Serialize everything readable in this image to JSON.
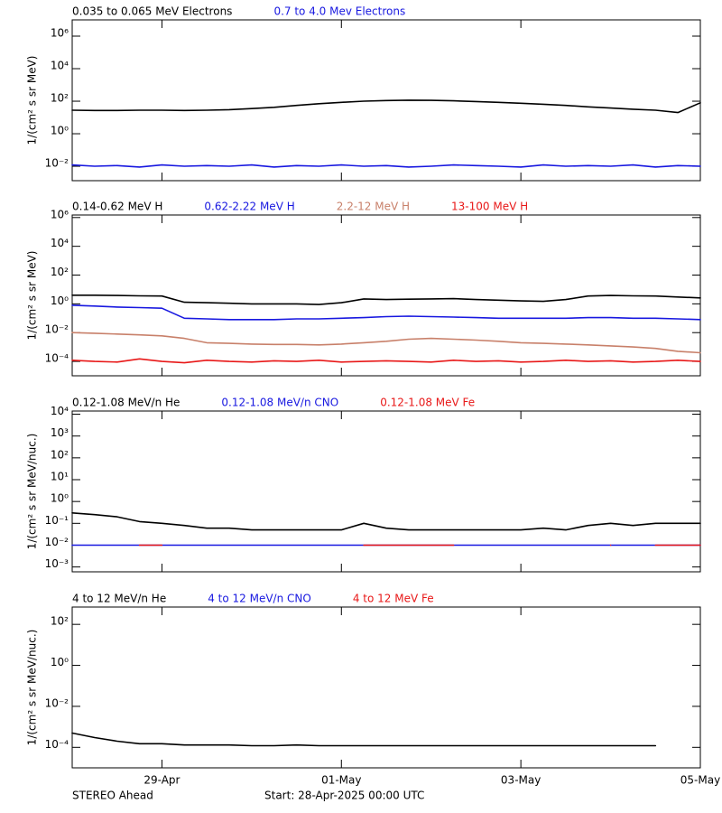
{
  "chart_data": [
    {
      "type": "line",
      "log_scale": true,
      "ylabel": "1/(cm² s sr MeV)",
      "ylim": [
        0.0013,
        10000000
      ],
      "yticks": [
        {
          "value": 0.01,
          "label": "10⁻²"
        },
        {
          "value": 1,
          "label": "10⁰"
        },
        {
          "value": 100,
          "label": "10²"
        },
        {
          "value": 10000,
          "label": "10⁴"
        },
        {
          "value": 1000000,
          "label": "10⁶"
        }
      ],
      "x": [
        0,
        0.25,
        0.5,
        0.75,
        1,
        1.25,
        1.5,
        1.75,
        2,
        2.25,
        2.5,
        2.75,
        3,
        3.25,
        3.5,
        3.75,
        4,
        4.25,
        4.5,
        4.75,
        5,
        5.25,
        5.5,
        5.75,
        6,
        6.25,
        6.5,
        6.75,
        7
      ],
      "series": [
        {
          "name": "0.035 to 0.065 MeV Electrons",
          "color": "#000000",
          "values": [
            28,
            27,
            27,
            28,
            28,
            27,
            28,
            30,
            35,
            42,
            55,
            70,
            85,
            100,
            110,
            115,
            112,
            105,
            95,
            85,
            75,
            65,
            55,
            45,
            38,
            32,
            28,
            20,
            80
          ]
        },
        {
          "name": "0.7 to 4.0 Mev Electrons",
          "color": "#1818e0",
          "values": [
            0.012,
            0.01,
            0.011,
            0.009,
            0.012,
            0.01,
            0.011,
            0.01,
            0.012,
            0.009,
            0.011,
            0.01,
            0.012,
            0.01,
            0.011,
            0.009,
            0.01,
            0.012,
            0.011,
            0.01,
            0.009,
            0.012,
            0.01,
            0.011,
            0.01,
            0.012,
            0.009,
            0.011,
            0.01
          ]
        }
      ]
    },
    {
      "type": "line",
      "log_scale": true,
      "ylabel": "1/(cm² s sr MeV)",
      "ylim": [
        1e-05,
        1500000
      ],
      "yticks": [
        {
          "value": 0.0001,
          "label": "10⁻⁴"
        },
        {
          "value": 0.01,
          "label": "10⁻²"
        },
        {
          "value": 1,
          "label": "10⁰"
        },
        {
          "value": 100,
          "label": "10²"
        },
        {
          "value": 10000,
          "label": "10⁴"
        },
        {
          "value": 1000000,
          "label": "10⁶"
        }
      ],
      "x": [
        0,
        0.25,
        0.5,
        0.75,
        1,
        1.25,
        1.5,
        1.75,
        2,
        2.25,
        2.5,
        2.75,
        3,
        3.25,
        3.5,
        3.75,
        4,
        4.25,
        4.5,
        4.75,
        5,
        5.25,
        5.5,
        5.75,
        6,
        6.25,
        6.5,
        6.75,
        7
      ],
      "series": [
        {
          "name": "0.14-0.62 MeV H",
          "color": "#000000",
          "values": [
            4,
            4,
            3.8,
            3.6,
            3.5,
            1.3,
            1.2,
            1.1,
            1,
            1,
            1,
            0.9,
            1.2,
            2.2,
            2,
            2.1,
            2.2,
            2.3,
            2,
            1.8,
            1.6,
            1.5,
            2,
            3.5,
            3.8,
            3.6,
            3.5,
            3,
            2.6
          ]
        },
        {
          "name": "0.62-2.22 MeV H",
          "color": "#1818e0",
          "values": [
            0.8,
            0.7,
            0.6,
            0.55,
            0.5,
            0.1,
            0.09,
            0.08,
            0.08,
            0.08,
            0.09,
            0.09,
            0.1,
            0.11,
            0.13,
            0.14,
            0.13,
            0.12,
            0.11,
            0.1,
            0.1,
            0.1,
            0.1,
            0.11,
            0.11,
            0.1,
            0.1,
            0.09,
            0.08
          ]
        },
        {
          "name": "2.2-12 MeV H",
          "color": "#c8806a",
          "values": [
            0.01,
            0.009,
            0.008,
            0.007,
            0.006,
            0.004,
            0.002,
            0.0018,
            0.0016,
            0.0015,
            0.0015,
            0.0014,
            0.0016,
            0.002,
            0.0025,
            0.0035,
            0.004,
            0.0035,
            0.003,
            0.0025,
            0.002,
            0.0018,
            0.0016,
            0.0014,
            0.0012,
            0.001,
            0.0008,
            0.0005,
            0.0004
          ]
        },
        {
          "name": "13-100 MeV H",
          "color": "#e81818",
          "values": [
            0.00012,
            0.0001,
            9e-05,
            0.00015,
            0.0001,
            8e-05,
            0.00012,
            0.0001,
            9e-05,
            0.00011,
            0.0001,
            0.00012,
            9e-05,
            0.0001,
            0.00011,
            0.0001,
            9e-05,
            0.00012,
            0.0001,
            0.00011,
            9e-05,
            0.0001,
            0.00012,
            0.0001,
            0.00011,
            9e-05,
            0.0001,
            0.00012,
            0.0001
          ]
        }
      ]
    },
    {
      "type": "line",
      "log_scale": true,
      "ylabel": "1/(cm² s sr MeV/nuc.)",
      "ylim": [
        0.0006,
        14000
      ],
      "yticks": [
        {
          "value": 0.001,
          "label": "10⁻³"
        },
        {
          "value": 0.01,
          "label": "10⁻²"
        },
        {
          "value": 0.1,
          "label": "10⁻¹"
        },
        {
          "value": 1,
          "label": "10⁰"
        },
        {
          "value": 10,
          "label": "10¹"
        },
        {
          "value": 100,
          "label": "10²"
        },
        {
          "value": 1000,
          "label": "10³"
        },
        {
          "value": 10000,
          "label": "10⁴"
        }
      ],
      "x": [
        0,
        0.25,
        0.5,
        0.75,
        1,
        1.25,
        1.5,
        1.75,
        2,
        2.25,
        2.5,
        2.75,
        3,
        3.25,
        3.5,
        3.75,
        4,
        4.25,
        4.5,
        4.75,
        5,
        5.25,
        5.5,
        5.75,
        6,
        6.25,
        6.5,
        6.75,
        7
      ],
      "series": [
        {
          "name": "0.12-1.08 MeV/n He",
          "color": "#000000",
          "values": [
            0.3,
            0.25,
            0.2,
            0.12,
            0.1,
            0.08,
            0.06,
            0.06,
            0.05,
            0.05,
            0.05,
            0.05,
            0.05,
            0.1,
            0.06,
            0.05,
            0.05,
            0.05,
            0.05,
            0.05,
            0.05,
            0.06,
            0.05,
            0.08,
            0.1,
            0.08,
            0.1,
            0.1,
            0.1
          ]
        },
        {
          "name": "0.12-1.08 MeV/n CNO",
          "color": "#1818e0",
          "values": [
            0.01,
            0.01,
            0.01,
            0.01,
            0.01,
            0.01,
            0.01,
            0.01,
            0.01,
            0.01,
            0.01,
            0.01,
            0.01,
            0.01,
            0.01,
            0.01,
            0.01,
            0.01,
            0.01,
            0.01,
            0.01,
            0.01,
            0.01,
            0.01,
            0.01,
            0.01,
            0.01,
            0.01,
            0.01
          ]
        },
        {
          "name": "0.12-1.08 MeV Fe",
          "color": "#e81818",
          "values": [
            null,
            null,
            null,
            0.01,
            0.01,
            null,
            null,
            null,
            null,
            null,
            null,
            null,
            null,
            0.01,
            0.01,
            0.01,
            0.01,
            0.01,
            null,
            null,
            null,
            null,
            null,
            null,
            0.01,
            null,
            0.01,
            0.01,
            0.01
          ]
        }
      ]
    },
    {
      "type": "line",
      "log_scale": true,
      "ylabel": "1/(cm² s sr MeV/nuc.)",
      "ylim": [
        1e-05,
        700
      ],
      "yticks": [
        {
          "value": 0.0001,
          "label": "10⁻⁴"
        },
        {
          "value": 0.01,
          "label": "10⁻²"
        },
        {
          "value": 1,
          "label": "10⁰"
        },
        {
          "value": 100,
          "label": "10²"
        }
      ],
      "xlim": [
        0,
        7
      ],
      "xticks": [
        {
          "value": 1,
          "label": "29-Apr"
        },
        {
          "value": 3,
          "label": "01-May"
        },
        {
          "value": 5,
          "label": "03-May"
        },
        {
          "value": 7,
          "label": "05-May"
        }
      ],
      "x": [
        0,
        0.25,
        0.5,
        0.75,
        1,
        1.25,
        1.5,
        1.75,
        2,
        2.25,
        2.5,
        2.75,
        3,
        3.25,
        3.5,
        3.75,
        4,
        4.25,
        4.5,
        4.75,
        5,
        5.25,
        5.5,
        5.75,
        6,
        6.25,
        6.5,
        6.75,
        7
      ],
      "series": [
        {
          "name": "4 to 12 MeV/n He",
          "color": "#000000",
          "values": [
            0.0005,
            0.0003,
            0.0002,
            0.00015,
            0.00015,
            0.00013,
            0.00013,
            0.00013,
            0.00012,
            0.00012,
            0.00013,
            0.00012,
            0.00012,
            0.00012,
            0.00012,
            0.00012,
            0.00012,
            0.00012,
            0.00012,
            0.00012,
            0.00012,
            0.00012,
            0.00012,
            0.00012,
            0.00012,
            0.00012,
            0.00012,
            null,
            null
          ]
        },
        {
          "name": "4 to 12 MeV/n CNO",
          "color": "#1818e0",
          "values": [
            null,
            null,
            null,
            null,
            null,
            null,
            null,
            null,
            null,
            null,
            null,
            null,
            null,
            null,
            null,
            null,
            null,
            null,
            null,
            null,
            null,
            null,
            null,
            null,
            null,
            null,
            null,
            null,
            null
          ]
        },
        {
          "name": "4 to 12 MeV Fe",
          "color": "#e81818",
          "values": [
            null,
            null,
            null,
            null,
            null,
            null,
            null,
            null,
            null,
            null,
            null,
            null,
            null,
            null,
            null,
            null,
            null,
            null,
            null,
            null,
            null,
            null,
            null,
            null,
            null,
            null,
            null,
            null,
            null
          ]
        }
      ]
    }
  ],
  "footer": {
    "source": "STEREO Ahead",
    "start": "Start: 28-Apr-2025 00:00 UTC"
  }
}
